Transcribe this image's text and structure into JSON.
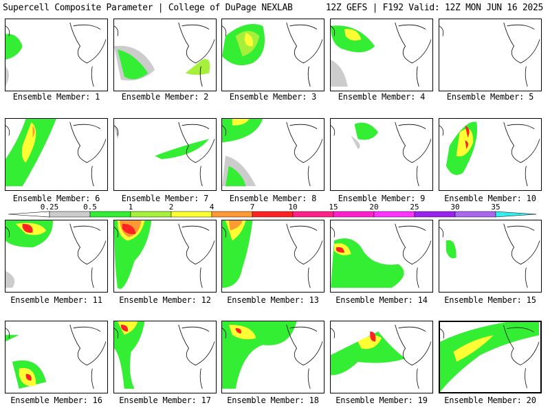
{
  "header": {
    "left": "Supercell Composite Parameter | College of DuPage NEXLAB",
    "right": "12Z GEFS | F192 Valid: 12Z MON JUN 16 2025"
  },
  "colorbar": {
    "ticks": [
      "0.25",
      "0.5",
      "1",
      "2",
      "4",
      "7",
      "10",
      "15",
      "20",
      "25",
      "30",
      "35"
    ],
    "colors": [
      "#cccccc",
      "#33ee33",
      "#a6f03c",
      "#ffff33",
      "#ff9933",
      "#ff2222",
      "#ff2288",
      "#ff22cc",
      "#ff33ff",
      "#9922ee",
      "#aa66ee",
      "#33eeee"
    ]
  },
  "members": [
    "Ensemble Member: 1",
    "Ensemble Member: 2",
    "Ensemble Member: 3",
    "Ensemble Member: 4",
    "Ensemble Member: 5",
    "Ensemble Member: 6",
    "Ensemble Member: 7",
    "Ensemble Member: 8",
    "Ensemble Member: 9",
    "Ensemble Member: 10",
    "Ensemble Member: 11",
    "Ensemble Member: 12",
    "Ensemble Member: 13",
    "Ensemble Member: 14",
    "Ensemble Member: 15",
    "Ensemble Member: 16",
    "Ensemble Member: 17",
    "Ensemble Member: 18",
    "Ensemble Member: 19",
    "Ensemble Member: 20"
  ]
}
